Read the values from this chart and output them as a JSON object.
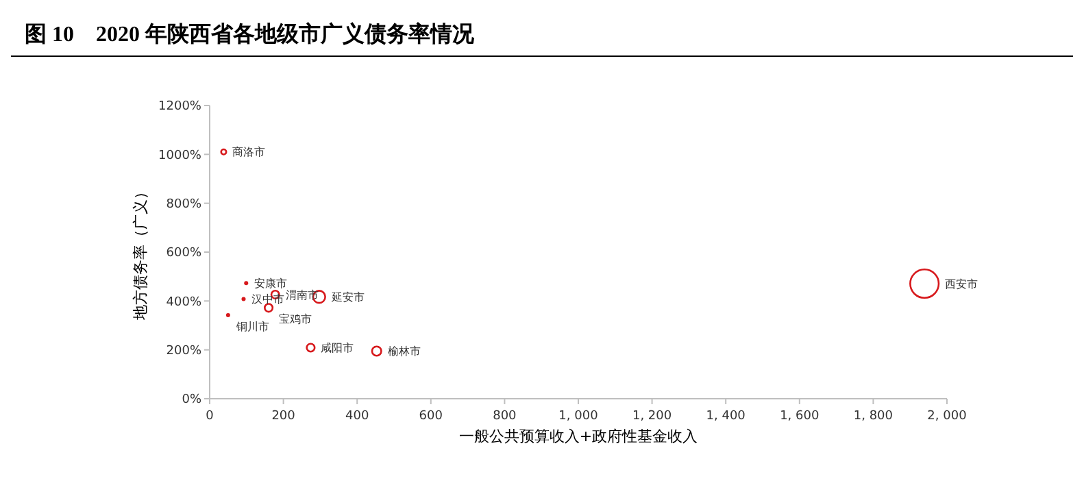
{
  "chart_data": {
    "type": "bubble",
    "title": "图 10　2020 年陕西省各地级市广义债务率情况",
    "xlabel": "一般公共预算收入+政府性基金收入",
    "ylabel": "地方债务率（广义）",
    "x": [
      38,
      99,
      92,
      50,
      178,
      160,
      297,
      274,
      453,
      1939
    ],
    "values": [
      1010,
      473,
      408,
      342,
      426,
      372,
      417,
      209,
      195,
      471
    ],
    "sizes": [
      0.05,
      0.03,
      0.02,
      0.02,
      0.1,
      0.1,
      0.21,
      0.1,
      0.13,
      1
    ],
    "color": "#d7191c",
    "annotations": [
      {
        "text": "商洛市",
        "x": 38,
        "y": 1010
      },
      {
        "text": "安康市",
        "x": 99,
        "y": 473
      },
      {
        "text": "汉中市",
        "x": 92,
        "y": 408
      },
      {
        "text": "铜川市",
        "x": 50,
        "y": 342
      },
      {
        "text": "渭南市",
        "x": 178,
        "y": 426
      },
      {
        "text": "宝鸡市",
        "x": 160,
        "y": 372
      },
      {
        "text": "延安市",
        "x": 297,
        "y": 417
      },
      {
        "text": "咸阳市",
        "x": 274,
        "y": 209
      },
      {
        "text": "榆林市",
        "x": 453,
        "y": 195
      },
      {
        "text": "西安市",
        "x": 1939,
        "y": 471
      }
    ],
    "xlim": [
      0,
      2000
    ],
    "xticks": [
      0,
      200,
      400,
      600,
      800,
      {
        "value": 1000,
        "label": "1, 000"
      },
      {
        "value": 1200,
        "label": "1, 200"
      },
      {
        "value": 1400,
        "label": "1, 400"
      },
      {
        "value": 1600,
        "label": "1, 600"
      },
      {
        "value": 1800,
        "label": "1, 800"
      },
      {
        "value": 2000,
        "label": "2, 000"
      }
    ],
    "ylim": [
      0,
      1200
    ],
    "yticks": [
      {
        "value": 0,
        "label": "0%"
      },
      {
        "value": 200,
        "label": "200%"
      },
      {
        "value": 400,
        "label": "400%"
      },
      {
        "value": 600,
        "label": "600%"
      },
      {
        "value": 800,
        "label": "800%"
      },
      {
        "value": 1000,
        "label": "1000%"
      },
      {
        "value": 1200,
        "label": "1200%"
      }
    ],
    "grid": false
  }
}
